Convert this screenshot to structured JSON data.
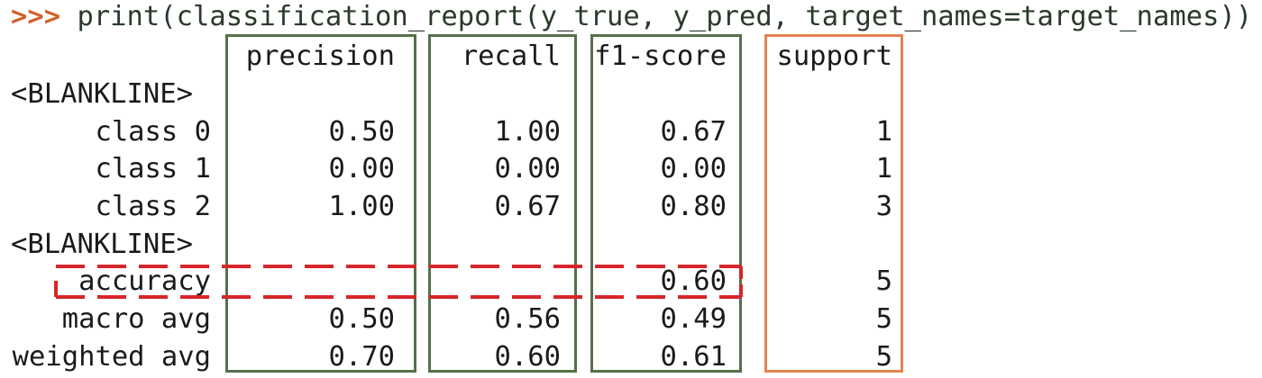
{
  "prompt": ">>>",
  "command": " print(classification_report(y_true, y_pred, target_names=target_names))",
  "headers": {
    "precision": "precision",
    "recall": "recall",
    "f1": "f1-score",
    "support": "support"
  },
  "blankline": "<BLANKLINE>",
  "rows": [
    {
      "label": "class 0",
      "precision": "0.50",
      "recall": "1.00",
      "f1": "0.67",
      "support": "1"
    },
    {
      "label": "class 1",
      "precision": "0.00",
      "recall": "0.00",
      "f1": "0.00",
      "support": "1"
    },
    {
      "label": "class 2",
      "precision": "1.00",
      "recall": "0.67",
      "f1": "0.80",
      "support": "3"
    }
  ],
  "accuracy": {
    "label": "accuracy",
    "f1": "0.60",
    "support": "5"
  },
  "summary": [
    {
      "label": "macro avg",
      "precision": "0.50",
      "recall": "0.56",
      "f1": "0.49",
      "support": "5"
    },
    {
      "label": "weighted avg",
      "precision": "0.70",
      "recall": "0.60",
      "f1": "0.61",
      "support": "5"
    }
  ],
  "colors": {
    "metric_box": "#56704a",
    "support_box": "#e38253",
    "highlight_dash": "#d7262b",
    "prompt": "#d2612a"
  }
}
